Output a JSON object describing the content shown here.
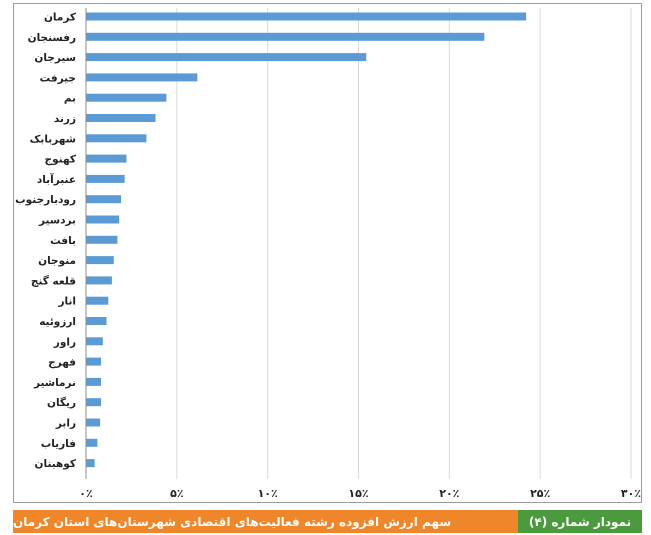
{
  "chart_data": {
    "type": "bar",
    "orientation": "horizontal",
    "categories": [
      "کرمان",
      "رفسنجان",
      "سیرجان",
      "جیرفت",
      "بم",
      "زرند",
      "شهربابک",
      "کهنوج",
      "عنبرآباد",
      "رودبارجنوب",
      "بردسیر",
      "بافت",
      "منوجان",
      "قلعه گنج",
      "انار",
      "ارزوئیه",
      "راور",
      "فهرج",
      "نرماشیر",
      "ریگان",
      "رابر",
      "فاریاب",
      "کوهبنان"
    ],
    "values": [
      24.2,
      21.9,
      15.4,
      6.1,
      4.4,
      3.8,
      3.3,
      2.2,
      2.1,
      1.9,
      1.8,
      1.7,
      1.5,
      1.4,
      1.2,
      1.1,
      0.9,
      0.8,
      0.8,
      0.8,
      0.75,
      0.6,
      0.45
    ],
    "xlim": [
      0,
      30
    ],
    "xticks": [
      0,
      5,
      10,
      15,
      20,
      25,
      30
    ],
    "xtick_labels": [
      "۰٪",
      "۵٪",
      "۱۰٪",
      "۱۵٪",
      "۲۰٪",
      "۲۵٪",
      "۳۰٪"
    ],
    "grid": "vertical",
    "bar_color": "#5b9bd5"
  },
  "caption": {
    "number": "نمودار شماره (۴)",
    "title": "سهم ارزش افزوده رشته فعالیت‌های اقتصادی شهرستان‌های  استان کرمان",
    "number_color": "#4b9a3e",
    "title_color": "#f0862a"
  }
}
